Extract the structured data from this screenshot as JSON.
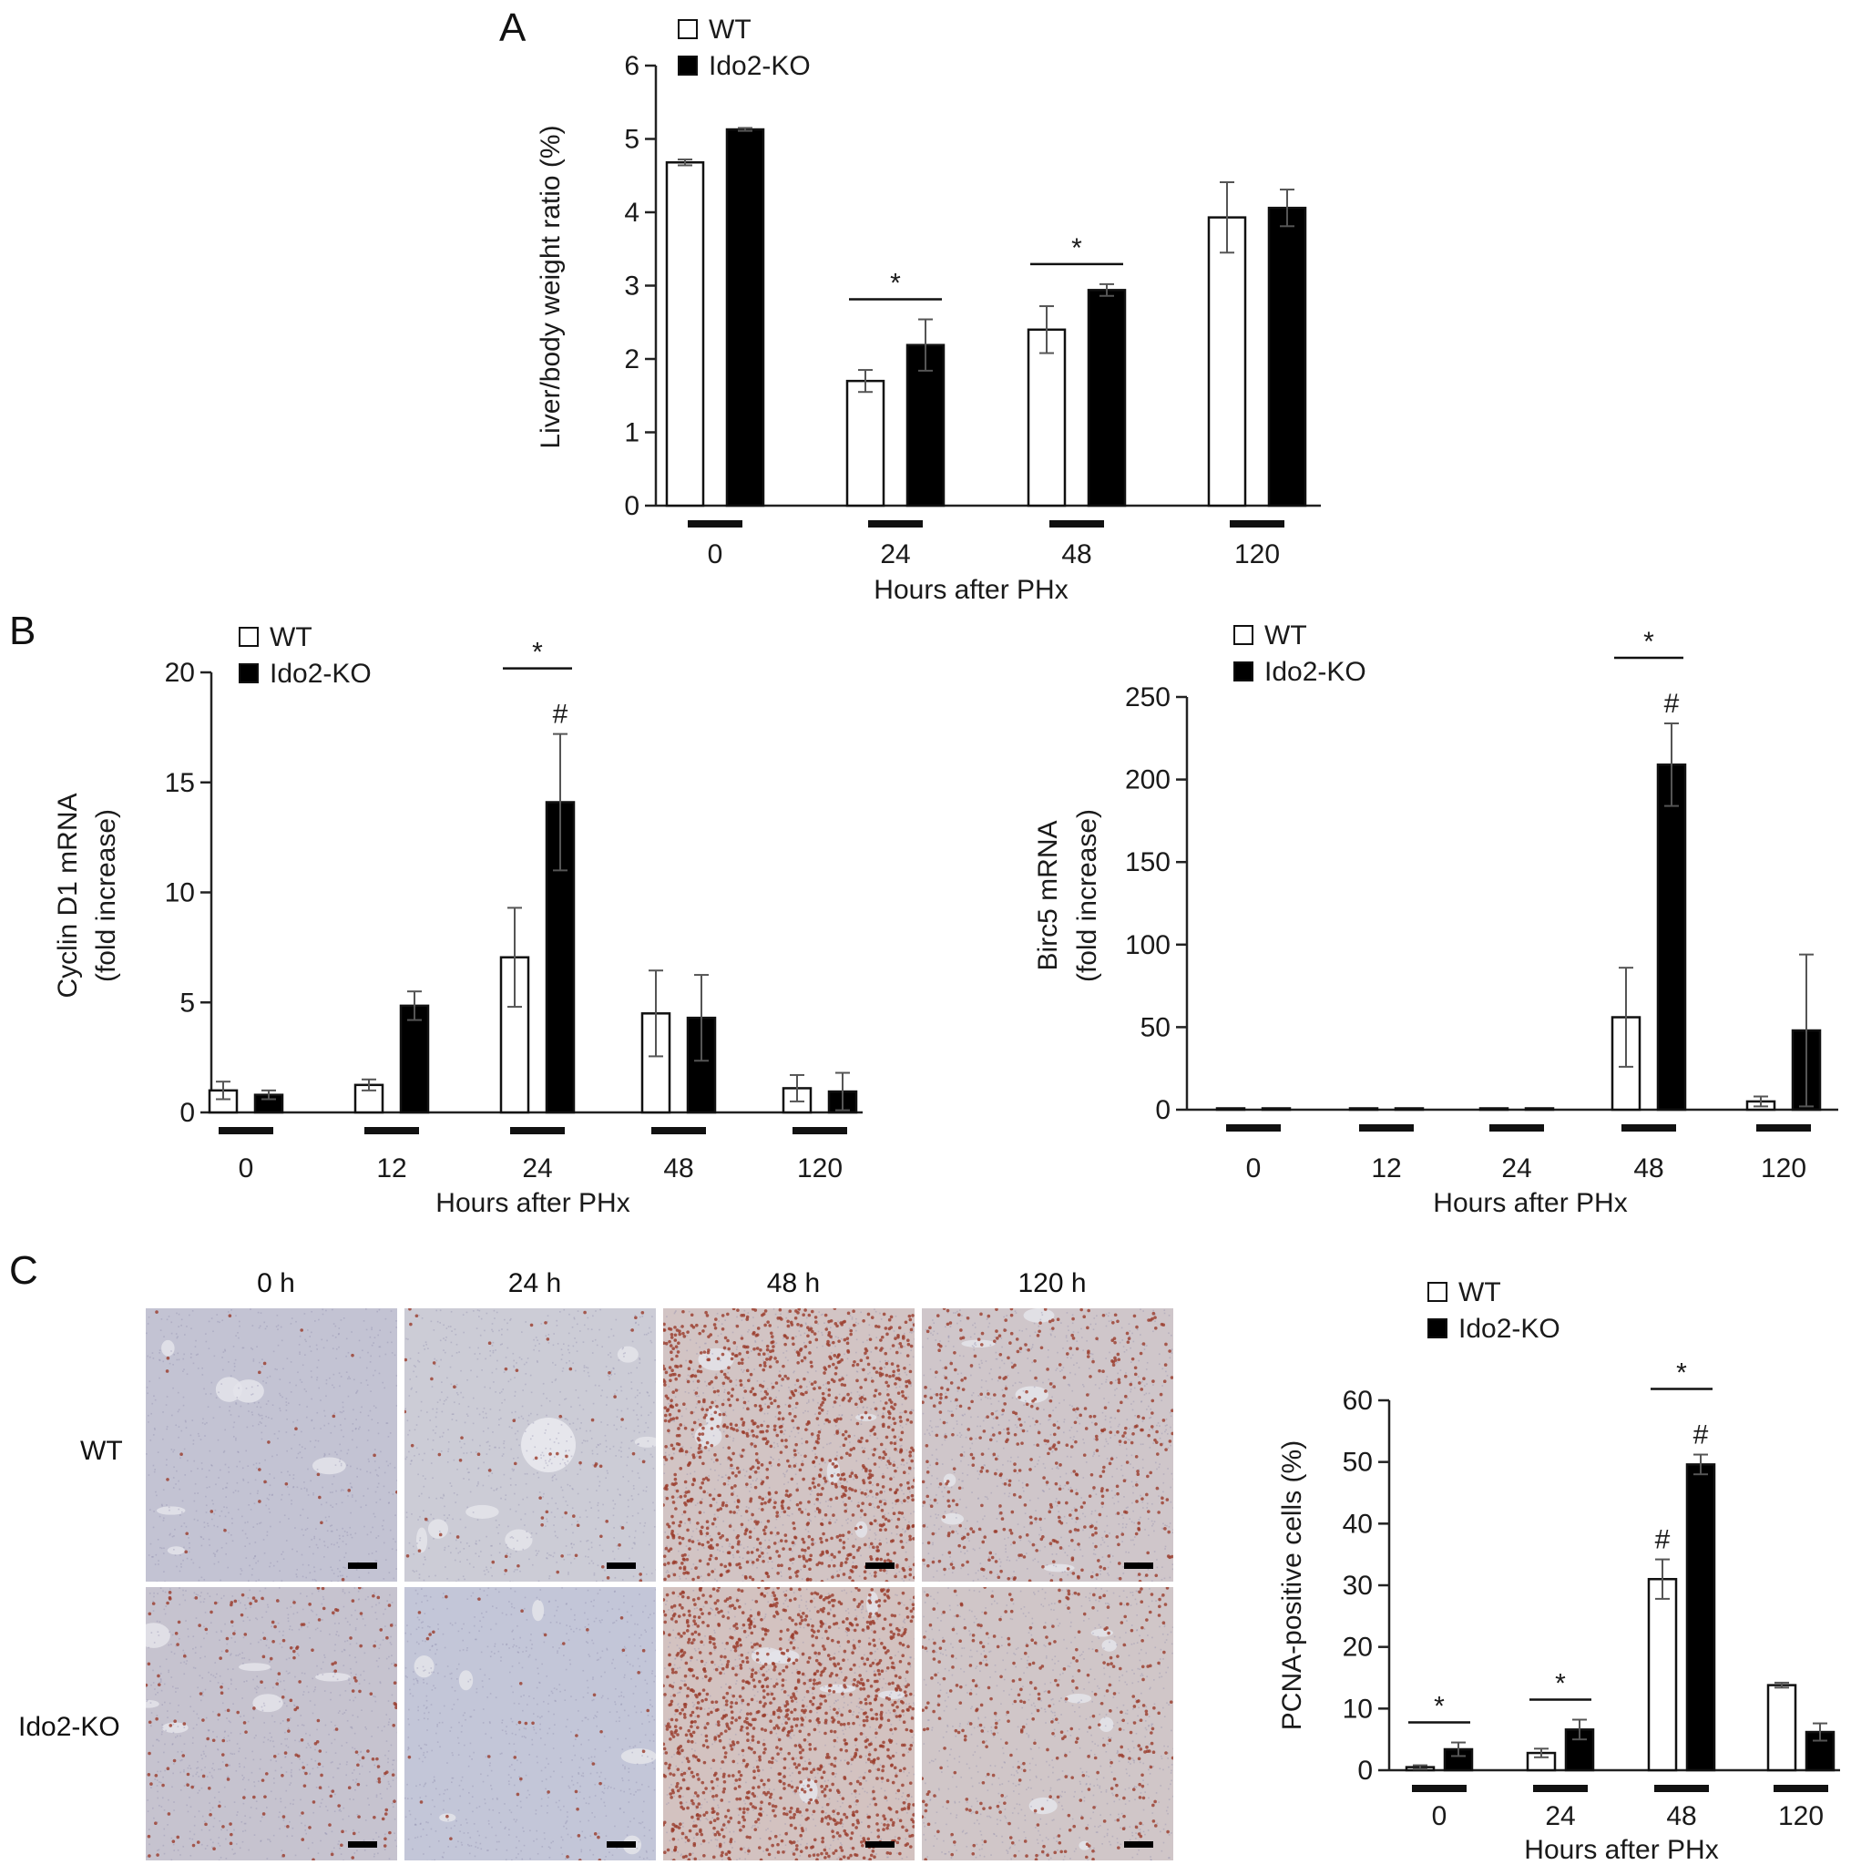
{
  "panels": {
    "A": {
      "letter": "A"
    },
    "B": {
      "letter": "B"
    },
    "C": {
      "letter": "C"
    }
  },
  "histology": {
    "columns": [
      "0 h",
      "24 h",
      "48 h",
      "120 h"
    ],
    "rows": [
      "WT",
      "Ido2-KO"
    ],
    "stain_density": [
      [
        0.02,
        0.05,
        0.85,
        0.35
      ],
      [
        0.15,
        0.03,
        0.95,
        0.25
      ]
    ],
    "base_colors": [
      [
        "#c3c3d3",
        "#ccccd6",
        "#d2c4c4",
        "#cfc6ca"
      ],
      [
        "#c6c3cf",
        "#c3c6d8",
        "#d3c2c0",
        "#d0c6c8"
      ]
    ],
    "dot_color": "#9a3b2a"
  },
  "legend": {
    "wt": "WT",
    "ko": "Ido2-KO"
  },
  "colors": {
    "wt_fill": "#ffffff",
    "ko_fill": "#000000",
    "error_bar": "#555555"
  },
  "chart_data": [
    {
      "id": "A",
      "type": "bar",
      "categories": [
        "0",
        "24",
        "48",
        "120"
      ],
      "series": [
        {
          "name": "WT",
          "values": [
            4.68,
            1.7,
            2.4,
            3.93
          ],
          "errors": [
            0.04,
            0.15,
            0.32,
            0.48
          ]
        },
        {
          "name": "Ido2-KO",
          "values": [
            5.13,
            2.19,
            2.94,
            4.06
          ],
          "errors": [
            0.02,
            0.35,
            0.08,
            0.25
          ]
        }
      ],
      "xlabel": "Hours after PHx",
      "ylabel": "Liver/body weight ratio (%)",
      "ylim": [
        0,
        6
      ],
      "yticks": [
        0,
        1,
        2,
        3,
        4,
        5,
        6
      ],
      "significance": [
        {
          "category": "24",
          "symbol": "*",
          "type": "bracket"
        },
        {
          "category": "48",
          "symbol": "*",
          "type": "bracket"
        }
      ],
      "grid": false,
      "legend_position": "top-left"
    },
    {
      "id": "B-left",
      "type": "bar",
      "categories": [
        "0",
        "12",
        "24",
        "48",
        "120"
      ],
      "series": [
        {
          "name": "WT",
          "values": [
            1.0,
            1.25,
            7.05,
            4.5,
            1.1
          ],
          "errors": [
            0.4,
            0.25,
            2.25,
            1.95,
            0.6
          ]
        },
        {
          "name": "Ido2-KO",
          "values": [
            0.8,
            4.85,
            14.1,
            4.3,
            0.95
          ],
          "errors": [
            0.2,
            0.65,
            3.1,
            1.95,
            0.85
          ]
        }
      ],
      "xlabel": "Hours after PHx",
      "ylabel": [
        "Cyclin D1 mRNA",
        "(fold increase)"
      ],
      "ylim": [
        0,
        20
      ],
      "yticks": [
        0,
        5,
        10,
        15,
        20
      ],
      "significance": [
        {
          "category": "24",
          "symbol": "*",
          "type": "bracket"
        },
        {
          "category": "24",
          "symbol": "#",
          "type": "ko"
        }
      ],
      "grid": false,
      "legend_position": "top-left"
    },
    {
      "id": "B-right",
      "type": "bar",
      "categories": [
        "0",
        "12",
        "24",
        "48",
        "120"
      ],
      "series": [
        {
          "name": "WT",
          "values": [
            0.3,
            0.3,
            0.3,
            56,
            5
          ],
          "errors": [
            0,
            0,
            0,
            30,
            3
          ]
        },
        {
          "name": "Ido2-KO",
          "values": [
            0.5,
            0.3,
            0.5,
            209,
            48
          ],
          "errors": [
            0,
            0,
            0,
            25,
            46
          ]
        }
      ],
      "xlabel": "Hours after PHx",
      "ylabel": [
        "Birc5 mRNA",
        "(fold increase)"
      ],
      "ylim": [
        0,
        250
      ],
      "yticks": [
        0,
        50,
        100,
        150,
        200,
        250
      ],
      "significance": [
        {
          "category": "48",
          "symbol": "*",
          "type": "bracket"
        },
        {
          "category": "48",
          "symbol": "#",
          "type": "ko"
        }
      ],
      "grid": false,
      "legend_position": "top-left"
    },
    {
      "id": "C-chart",
      "type": "bar",
      "categories": [
        "0",
        "24",
        "48",
        "120"
      ],
      "series": [
        {
          "name": "WT",
          "values": [
            0.5,
            2.8,
            31,
            13.8
          ],
          "errors": [
            0.3,
            0.7,
            3.2,
            0.4
          ]
        },
        {
          "name": "Ido2-KO",
          "values": [
            3.4,
            6.6,
            49.6,
            6.2
          ],
          "errors": [
            1.1,
            1.6,
            1.6,
            1.4
          ]
        }
      ],
      "xlabel": "Hours after PHx",
      "ylabel": "PCNA-positive cells (%)",
      "ylim": [
        0,
        60
      ],
      "yticks": [
        0,
        10,
        20,
        30,
        40,
        50,
        60
      ],
      "significance": [
        {
          "category": "0",
          "symbol": "*",
          "type": "bracket"
        },
        {
          "category": "24",
          "symbol": "*",
          "type": "bracket"
        },
        {
          "category": "48",
          "symbol": "*",
          "type": "bracket"
        },
        {
          "category": "48",
          "symbol": "#",
          "type": "wt"
        },
        {
          "category": "48",
          "symbol": "#",
          "type": "ko"
        }
      ],
      "grid": false,
      "legend_position": "top-left"
    }
  ]
}
